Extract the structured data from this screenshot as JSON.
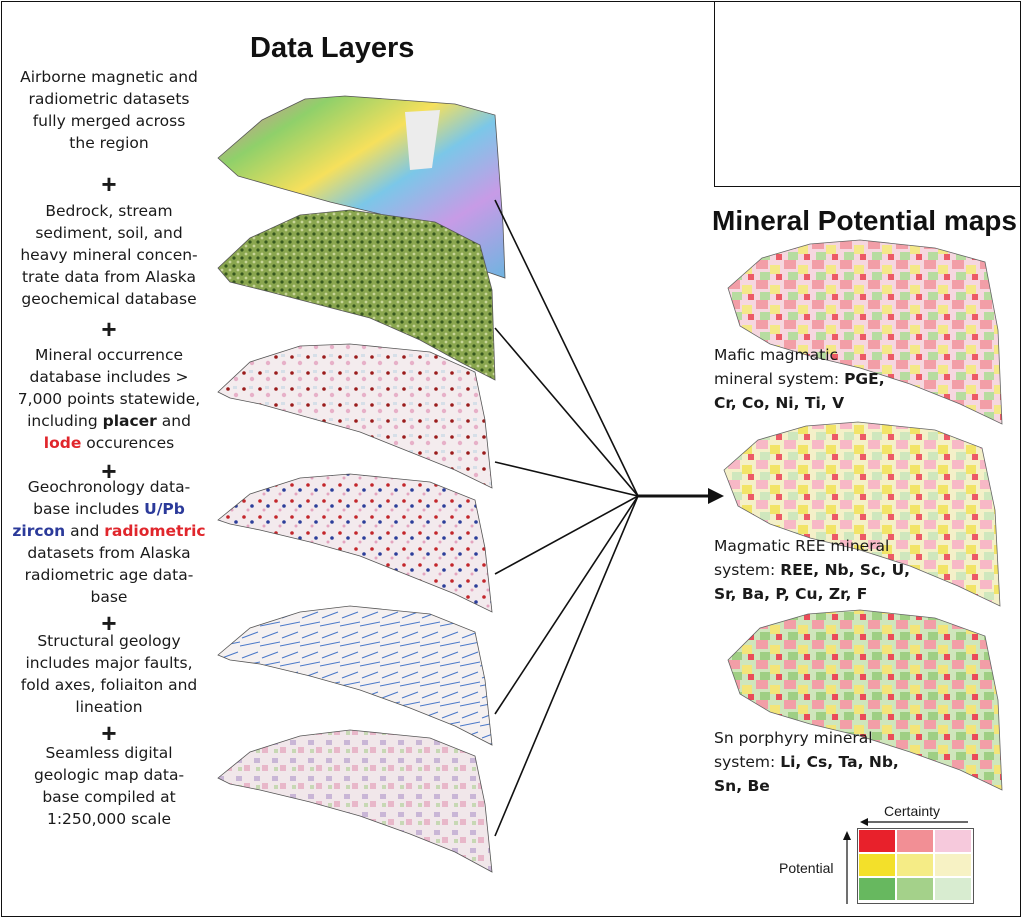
{
  "headings": {
    "data_layers": "Data Layers",
    "mineral_potential": "Mineral Potential maps"
  },
  "layers": [
    {
      "text_lines": [
        "Airborne magnetic and",
        "radiometric datasets",
        "fully merged across",
        "the region"
      ]
    },
    {
      "text_lines": [
        "Bedrock, stream",
        "sediment, soil, and",
        "heavy mineral concen-",
        "trate data from Alaska",
        "geochemical database"
      ]
    },
    {
      "line1": "Mineral occurrence",
      "line2": "database includes >",
      "line3": "7,000 points statewide,",
      "line4_prefix": "including ",
      "placer": "placer",
      "line4_suffix": " and",
      "lode": "lode",
      "line5_suffix": " occurences"
    },
    {
      "line1": "Geochronology  data-",
      "line2_prefix": "base includes ",
      "upb": "U/Pb",
      "zircon": "zircon",
      "and": " and ",
      "radiometric": "radiometric",
      "line4": "datasets from Alaska",
      "line5": "radiometric age data-",
      "line6": "base"
    },
    {
      "text_lines": [
        "Structural geology",
        "includes major faults,",
        "fold axes, foliaiton and",
        "lineation"
      ]
    },
    {
      "text_lines": [
        "Seamless digital",
        "geologic map data-",
        "base compiled at",
        "1:250,000 scale"
      ]
    }
  ],
  "plus_symbol": "+",
  "mineral_maps": [
    {
      "text_prefix_1": "Mafic magmatic",
      "text_prefix_2": "mineral system: ",
      "bold_2": "PGE,",
      "bold_3": "Cr, Co, Ni, Ti, V"
    },
    {
      "text_prefix_1": "Magmatic REE mineral",
      "text_prefix_2": "system: ",
      "bold_2": "REE, Nb, Sc, U,",
      "bold_3": "Sr, Ba, P, Cu, Zr, F"
    },
    {
      "text_prefix_1": "Sn porphyry mineral",
      "text_prefix_2": "system: ",
      "bold_2": "Li, Cs, Ta, Nb,",
      "bold_3": "Sn, Be"
    }
  ],
  "legend": {
    "certainty_label": "Certainty",
    "potential_label": "Potential",
    "grid_colors": [
      [
        "#e8212b",
        "#f28f95",
        "#f6c9dc"
      ],
      [
        "#f3e02a",
        "#f5ec86",
        "#f7f2c4"
      ],
      [
        "#67b85f",
        "#a4d18a",
        "#d8ecd0"
      ]
    ]
  },
  "colors": {
    "lode_red": "#e0262c",
    "upb_blue": "#2b3a9a",
    "radiometric_red": "#e0262c"
  }
}
